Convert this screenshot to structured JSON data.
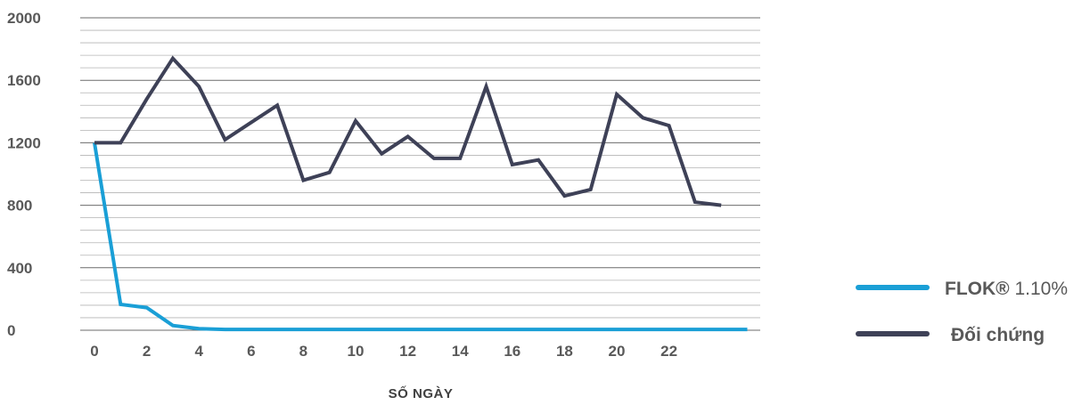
{
  "chart_data": {
    "type": "line",
    "title": "",
    "xlabel": "SỐ NGÀY",
    "ylabel": "",
    "ylim": [
      0,
      2000
    ],
    "y_ticks": [
      "0",
      "400",
      "800",
      "1200",
      "1600",
      "2000"
    ],
    "x_ticks": [
      "0",
      "2",
      "4",
      "6",
      "8",
      "10",
      "12",
      "14",
      "16",
      "18",
      "20",
      "22"
    ],
    "xlim": [
      0,
      25
    ],
    "grid": "horizontal",
    "legend_position": "right",
    "x": [
      0,
      1,
      2,
      3,
      4,
      5,
      6,
      7,
      8,
      9,
      10,
      11,
      12,
      13,
      14,
      15,
      16,
      17,
      18,
      19,
      20,
      21,
      22,
      23,
      24,
      25
    ],
    "series": [
      {
        "name_bold": "FLOK®",
        "name_rest": "1.10%",
        "color": "#1a9fd6",
        "values": [
          1200,
          165,
          145,
          30,
          10,
          5,
          5,
          5,
          5,
          5,
          5,
          5,
          5,
          5,
          5,
          5,
          5,
          5,
          5,
          5,
          5,
          5,
          5,
          5,
          5,
          5
        ]
      },
      {
        "name_bold": "",
        "name_rest": "Đối chứng",
        "color": "#3e4157",
        "values": [
          1200,
          1200,
          1480,
          1740,
          1560,
          1220,
          1330,
          1440,
          960,
          1010,
          1340,
          1130,
          1240,
          1100,
          1100,
          1560,
          1060,
          1090,
          860,
          900,
          1510,
          1360,
          1310,
          820,
          800,
          null
        ]
      }
    ]
  }
}
